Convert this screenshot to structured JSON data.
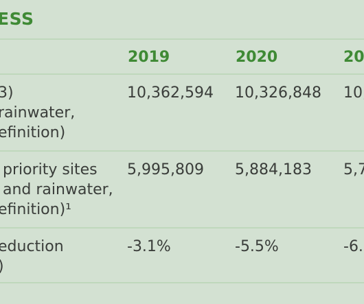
{
  "title": "ESS",
  "years": [
    "2019",
    "2020",
    "20"
  ],
  "rows": [
    {
      "label_lines": [
        "3)",
        "rainwater,",
        "efinition)"
      ],
      "values": [
        "10,362,594",
        "10,326,848",
        "10,"
      ]
    },
    {
      "label_lines": [
        "priority sites",
        "and rainwater,",
        "efinition)¹"
      ],
      "values": [
        "5,995,809",
        "5,884,183",
        "5,7"
      ]
    },
    {
      "label_lines": [
        "eduction",
        ")"
      ],
      "values": [
        "-3.1%",
        "-5.5%",
        "-6."
      ]
    }
  ],
  "colors": {
    "background": "#d3e1d2",
    "accent": "#3f8a35",
    "text": "#3a3d3a",
    "rule": "#bfd8bc"
  }
}
